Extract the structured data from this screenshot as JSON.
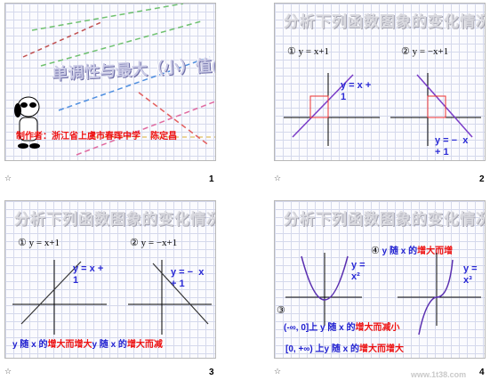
{
  "slides": [
    {
      "number": "1",
      "title": "单调性与最大（小）值(1)",
      "author": "制作者：浙江省上虞市春晖中学    陈定昌"
    },
    {
      "number": "2",
      "header": "分析下列函数图象的变化情况：",
      "label1": "①  y = x+1",
      "label2": "②  y = −x+1",
      "eq1": "y = x +\n1",
      "eq2": "y = −  x\n+ 1"
    },
    {
      "number": "3",
      "header": "分析下列函数图象的变化情况：",
      "label1": "①  y = x+1",
      "label2": "②  y = −x+1",
      "eq1": "y = x +\n1",
      "eq2": "y = −  x\n+ 1",
      "conclusion_prefix": "y 随 x 的",
      "conclusion_red1": "增大而增大",
      "conclusion_mid": "y 随 x 的",
      "conclusion_red2": "增大而减"
    },
    {
      "number": "4",
      "header": "分析下列函数图象的变化情况：",
      "label4": "④",
      "line4_prefix": "y 随 x 的",
      "line4_red": "增大而增",
      "eq_square": "y =\nx²",
      "eq_cube": "y =\nx³",
      "label3": "③",
      "line3_prefix": "(-∞, 0]上 y 随 x 的",
      "line3_red": "增大而减小",
      "line3b_prefix": "[0, +∞) 上y 随 x 的",
      "line3b_red": "增大而增大"
    }
  ],
  "watermark": "www.1t38.com",
  "star_glyph": "☆",
  "colors": {
    "accent_blue": "#1f1fd0",
    "accent_red": "#ee1111",
    "grid": "#d5d9ec"
  }
}
